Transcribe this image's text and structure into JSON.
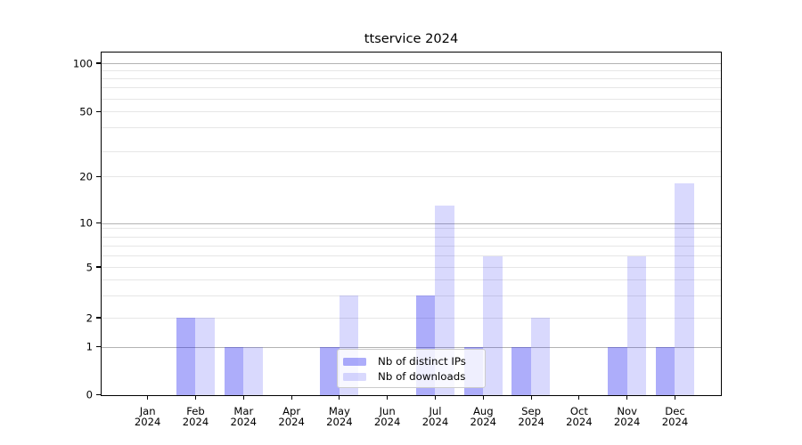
{
  "title": "ttservice 2024",
  "chart_data": {
    "type": "bar",
    "title": "ttservice 2024",
    "categories": [
      "Jan",
      "Feb",
      "Mar",
      "Apr",
      "May",
      "Jun",
      "Jul",
      "Aug",
      "Sep",
      "Oct",
      "Nov",
      "Dec"
    ],
    "x_year_label": "2024",
    "series": [
      {
        "name": "Nb of distinct IPs",
        "color": "#1414f0",
        "alpha": 0.35,
        "values": [
          0,
          2,
          1,
          0,
          1,
          0,
          3,
          1,
          1,
          0,
          1,
          1
        ]
      },
      {
        "name": "Nb of downloads",
        "color": "#1414f0",
        "alpha": 0.16,
        "values": [
          0,
          2,
          1,
          0,
          3,
          0,
          13,
          6,
          2,
          0,
          6,
          18
        ]
      }
    ],
    "y_axis": {
      "tick_values": [
        100,
        50,
        20,
        10,
        5,
        2,
        1,
        0
      ],
      "tick_labels": [
        "100",
        "50",
        "20",
        "10",
        "5",
        "2",
        "1",
        "0"
      ],
      "scale": "symlog",
      "ylim": [
        0,
        110
      ]
    },
    "legend": {
      "entries": [
        "Nb of distinct IPs",
        "Nb of downloads"
      ],
      "position": "lower center inside"
    },
    "grid": "horizontal major and minor"
  },
  "colors": {
    "bar_distinct_ips_visible": "#a9a9f8",
    "bar_downloads_visible": "#dadaf9",
    "grid_major": "#b3b3b3",
    "grid_minor": "#e6e6e6",
    "axis": "#000000",
    "legend_border": "#cccccc"
  }
}
